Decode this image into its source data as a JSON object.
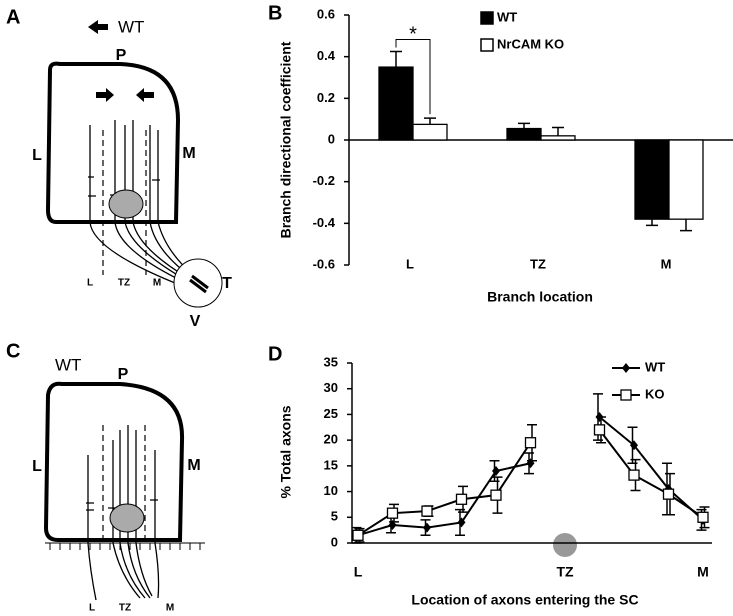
{
  "panel_labels": [
    "A",
    "B",
    "C",
    "D"
  ],
  "diagram_a": {
    "title": "WT",
    "labels": [
      "P",
      "L",
      "M",
      "T",
      "V"
    ],
    "axis_labels": [
      "L",
      "TZ",
      "M"
    ]
  },
  "diagram_c": {
    "title": "WT",
    "labels": [
      "P",
      "L",
      "M"
    ],
    "axis_labels": [
      "L",
      "TZ",
      "M"
    ]
  },
  "chart_data": [
    {
      "type": "bar",
      "y_label": "Branch directional coefficient",
      "x_label": "Branch location",
      "categories": [
        "L",
        "TZ",
        "M"
      ],
      "series": [
        {
          "name": "WT",
          "color": "#000000",
          "values": [
            0.35,
            0.055,
            -0.38
          ],
          "errors": [
            0.075,
            0.025,
            0.03
          ]
        },
        {
          "name": "NrCAM  KO",
          "color": "#ffffff",
          "values": [
            0.075,
            0.02,
            -0.38
          ],
          "errors": [
            0.03,
            0.04,
            0.055
          ]
        }
      ],
      "ylim": [
        -0.6,
        0.6
      ],
      "yticks": [
        -0.6,
        -0.4,
        -0.2,
        0,
        0.2,
        0.4,
        0.6
      ],
      "annotation": "*",
      "legend": "upper right"
    },
    {
      "type": "line",
      "y_label": "% Total axons",
      "x_label": "Location of axons entering the SC",
      "categories": [
        "L",
        null,
        null,
        null,
        null,
        null,
        "TZ",
        null,
        null,
        null,
        "M"
      ],
      "series": [
        {
          "name": "WT",
          "color": "#000000",
          "marker": "diamond",
          "values": [
            1.5,
            3.5,
            3,
            4,
            14,
            15.5,
            null,
            24.5,
            19,
            10.5,
            4.5
          ],
          "errors": [
            1.5,
            1.5,
            1.5,
            2.5,
            2,
            2,
            null,
            4.5,
            3.5,
            5,
            2
          ]
        },
        {
          "name": "KO",
          "color": "#000000",
          "marker": "square",
          "values": [
            1.5,
            5.8,
            6.2,
            8.5,
            9.3,
            19.5,
            null,
            22,
            13.2,
            9.5,
            5
          ],
          "errors": [
            1.3,
            1.7,
            1,
            2.5,
            3.5,
            3.5,
            null,
            2.5,
            3,
            4,
            2
          ]
        }
      ],
      "ylim": [
        0,
        35
      ],
      "yticks": [
        0,
        5,
        10,
        15,
        20,
        25,
        30,
        35
      ],
      "legend": "upper right"
    }
  ]
}
